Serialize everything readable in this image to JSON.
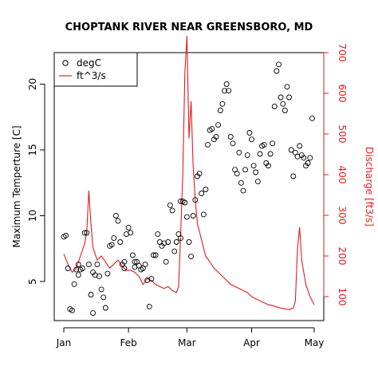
{
  "chart_data": {
    "type": "line",
    "title": "CHOPTANK RIVER NEAR GREENSBORO, MD",
    "xlabel": "",
    "x_ticks": [
      {
        "label": "Jan",
        "day": 0
      },
      {
        "label": "Feb",
        "day": 31
      },
      {
        "label": "Mar",
        "day": 59
      },
      {
        "label": "Apr",
        "day": 90
      },
      {
        "label": "May",
        "day": 120
      }
    ],
    "xlim": [
      0,
      120
    ],
    "ylabel_left": "Maximum Temperture [C]",
    "ylim_left": [
      2.5,
      22.5
    ],
    "y_ticks_left": [
      5,
      10,
      15,
      20
    ],
    "ylabel_right": "Discharge [ft3/s]",
    "ylim_right": [
      50,
      750
    ],
    "y_ticks_right": [
      100,
      200,
      300,
      400,
      500,
      600,
      700
    ],
    "legend": {
      "placement": "top-left",
      "entries": [
        {
          "label": "degC",
          "symbol": "circle",
          "color": "#000000"
        },
        {
          "label": "ft^3/s",
          "symbol": "line",
          "color": "#e31a1c"
        }
      ]
    },
    "series": [
      {
        "name": "degC",
        "axis": "left",
        "style": "points",
        "color": "#000000",
        "x": [
          0,
          1,
          2,
          3,
          4,
          5,
          6,
          7,
          7,
          8,
          9,
          10,
          11,
          12,
          13,
          14,
          14,
          15,
          16,
          17,
          18,
          19,
          20,
          21,
          22,
          23,
          24,
          25,
          26,
          27,
          28,
          29,
          29,
          30,
          31,
          32,
          33,
          34,
          34,
          35,
          36,
          37,
          38,
          39,
          40,
          41,
          42,
          43,
          44,
          45,
          46,
          47,
          48,
          49,
          50,
          51,
          52,
          53,
          54,
          55,
          56,
          56,
          57,
          58,
          59,
          60,
          61,
          62,
          63,
          64,
          65,
          66,
          67,
          68,
          69,
          70,
          71,
          72,
          73,
          74,
          75,
          76,
          77,
          78,
          79,
          80,
          81,
          82,
          83,
          84,
          85,
          86,
          87,
          88,
          89,
          90,
          91,
          92,
          93,
          94,
          95,
          96,
          97,
          98,
          99,
          100,
          101,
          102,
          103,
          104,
          105,
          106,
          107,
          108,
          109,
          110,
          111,
          112,
          113,
          114,
          115,
          116,
          117,
          118,
          119
        ],
        "y": [
          8.4,
          8.5,
          6.0,
          2.9,
          2.8,
          4.8,
          5.9,
          6.3,
          5.5,
          5.9,
          6.0,
          8.7,
          8.7,
          6.3,
          4.0,
          2.6,
          5.7,
          5.5,
          6.3,
          5.4,
          4.4,
          3.8,
          3.0,
          5.6,
          7.7,
          7.8,
          8.3,
          10.0,
          9.6,
          8.0,
          6.3,
          6.5,
          6.0,
          8.6,
          9.1,
          8.7,
          7.0,
          6.5,
          6.1,
          6.5,
          6.2,
          5.9,
          6.0,
          6.3,
          5.1,
          3.1,
          5.2,
          7.0,
          7.0,
          8.6,
          8.0,
          7.7,
          7.9,
          6.5,
          8.0,
          10.8,
          10.4,
          7.3,
          8.0,
          8.6,
          8.3,
          11.1,
          11.1,
          11.0,
          9.9,
          8.0,
          6.9,
          10.0,
          11.2,
          13.0,
          13.2,
          11.7,
          10.1,
          12.0,
          15.4,
          16.5,
          16.6,
          15.8,
          16.0,
          16.9,
          18.0,
          18.5,
          19.5,
          20.0,
          19.5,
          16.0,
          15.5,
          13.5,
          13.2,
          14.8,
          12.5,
          11.9,
          13.5,
          14.6,
          16.3,
          15.8,
          13.8,
          13.3,
          12.6,
          14.7,
          15.3,
          15.4,
          14.0,
          13.8,
          14.7,
          15.5,
          18.3,
          21.0,
          21.5,
          19.0,
          18.5,
          18.0,
          19.8,
          19.0,
          15.0,
          13.0,
          14.8,
          14.5,
          15.3,
          14.6,
          14.4,
          13.8,
          14.0,
          14.4,
          17.4
        ]
      },
      {
        "name": "ft^3/s",
        "axis": "right",
        "style": "line",
        "color": "#e31a1c",
        "x": [
          0,
          2,
          4,
          6,
          8,
          10,
          11,
          12,
          13,
          14,
          16,
          18,
          20,
          22,
          24,
          26,
          28,
          30,
          32,
          34,
          36,
          38,
          40,
          42,
          44,
          46,
          48,
          50,
          52,
          54,
          55,
          56,
          57,
          58,
          59,
          60,
          61,
          62,
          63,
          64,
          66,
          68,
          70,
          72,
          74,
          76,
          78,
          80,
          82,
          84,
          86,
          88,
          90,
          92,
          94,
          96,
          98,
          100,
          102,
          104,
          106,
          108,
          110,
          111,
          112,
          113,
          114,
          116,
          118,
          120
        ],
        "y": [
          205,
          180,
          160,
          170,
          200,
          230,
          260,
          360,
          280,
          220,
          190,
          200,
          185,
          170,
          180,
          190,
          175,
          165,
          165,
          160,
          150,
          130,
          145,
          140,
          130,
          125,
          120,
          125,
          115,
          110,
          125,
          250,
          400,
          650,
          740,
          490,
          580,
          420,
          340,
          280,
          240,
          200,
          185,
          170,
          160,
          150,
          140,
          130,
          125,
          120,
          115,
          110,
          100,
          95,
          90,
          85,
          80,
          78,
          75,
          72,
          70,
          68,
          72,
          90,
          220,
          270,
          190,
          130,
          100,
          80
        ]
      }
    ]
  }
}
